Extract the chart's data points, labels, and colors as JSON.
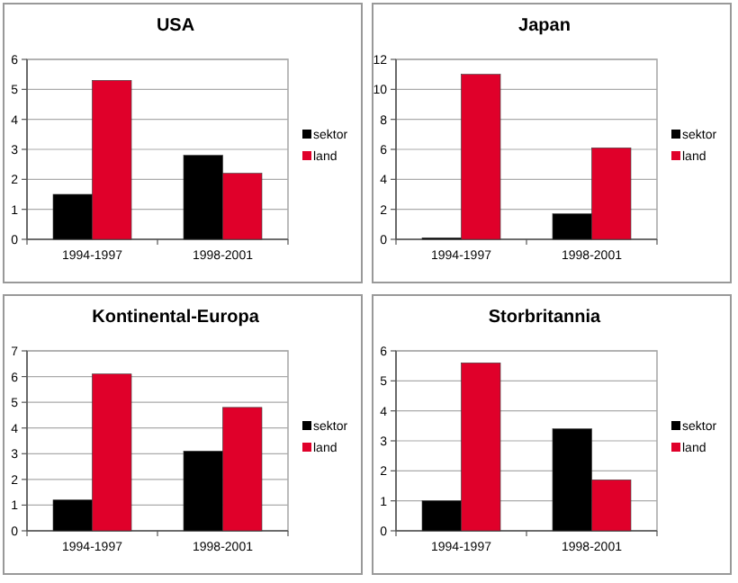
{
  "chart_data": [
    {
      "type": "bar",
      "title": "USA",
      "categories": [
        "1994-1997",
        "1998-2001"
      ],
      "series": [
        {
          "name": "sektor",
          "color": "#000000",
          "values": [
            1.5,
            2.8
          ]
        },
        {
          "name": "land",
          "color": "#e0002a",
          "values": [
            5.3,
            2.2
          ]
        }
      ],
      "ylim": [
        0,
        6
      ],
      "yticks": [
        0,
        1,
        2,
        3,
        4,
        5,
        6
      ],
      "grid": "y",
      "legend": "right"
    },
    {
      "type": "bar",
      "title": "Japan",
      "categories": [
        "1994-1997",
        "1998-2001"
      ],
      "series": [
        {
          "name": "sektor",
          "color": "#000000",
          "values": [
            0.1,
            1.7
          ]
        },
        {
          "name": "land",
          "color": "#e0002a",
          "values": [
            11,
            6.1
          ]
        }
      ],
      "ylim": [
        0,
        12
      ],
      "yticks": [
        0,
        2,
        4,
        6,
        8,
        10,
        12
      ],
      "grid": "y",
      "legend": "right"
    },
    {
      "type": "bar",
      "title": "Kontinental-Europa",
      "categories": [
        "1994-1997",
        "1998-2001"
      ],
      "series": [
        {
          "name": "sektor",
          "color": "#000000",
          "values": [
            1.2,
            3.1
          ]
        },
        {
          "name": "land",
          "color": "#e0002a",
          "values": [
            6.1,
            4.8
          ]
        }
      ],
      "ylim": [
        0,
        7
      ],
      "yticks": [
        0,
        1,
        2,
        3,
        4,
        5,
        6,
        7
      ],
      "grid": "y",
      "legend": "right"
    },
    {
      "type": "bar",
      "title": "Storbritannia",
      "categories": [
        "1994-1997",
        "1998-2001"
      ],
      "series": [
        {
          "name": "sektor",
          "color": "#000000",
          "values": [
            1.0,
            3.4
          ]
        },
        {
          "name": "land",
          "color": "#e0002a",
          "values": [
            5.6,
            1.7
          ]
        }
      ],
      "ylim": [
        0,
        6
      ],
      "yticks": [
        0,
        1,
        2,
        3,
        4,
        5,
        6
      ],
      "grid": "y",
      "legend": "right"
    }
  ]
}
